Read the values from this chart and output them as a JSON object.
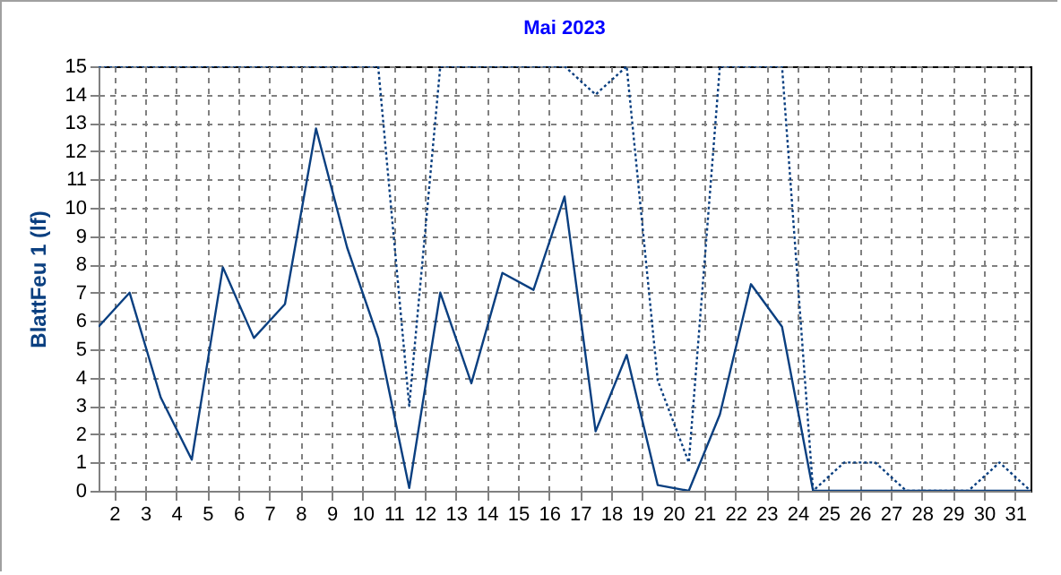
{
  "chart_data": {
    "type": "line",
    "title": "Mai 2023",
    "ylabel": "BlattFeu 1 (lf)",
    "x": [
      1.5,
      2.5,
      3.5,
      4.5,
      5.5,
      6.5,
      7.5,
      8.5,
      9.5,
      10.5,
      11.5,
      12.5,
      13.5,
      14.5,
      15.5,
      16.5,
      17.5,
      18.5,
      19.5,
      20.5,
      21.5,
      22.5,
      23.5,
      24.5,
      25.5,
      26.5,
      27.5,
      28.5,
      29.5,
      30.5,
      31.5
    ],
    "series": [
      {
        "color": "#0a3f80",
        "line_style": "solid",
        "values": [
          5.8,
          7.0,
          3.3,
          1.1,
          7.9,
          5.4,
          6.6,
          12.8,
          8.6,
          5.4,
          0.1,
          7.0,
          3.8,
          7.7,
          7.1,
          10.4,
          2.1,
          4.8,
          0.2,
          0.0,
          2.7,
          7.3,
          5.8,
          0,
          0,
          0,
          0,
          0,
          0,
          0,
          0
        ]
      },
      {
        "color": "#0a3f80",
        "line_style": "dotted",
        "values": [
          15,
          15,
          15,
          15,
          15,
          15,
          15,
          15,
          15,
          15,
          3.0,
          15,
          15,
          15,
          15,
          15,
          14.0,
          15,
          3.9,
          1.0,
          15,
          15,
          15,
          0,
          1.0,
          1.0,
          0,
          0,
          0,
          1.0,
          0
        ]
      }
    ],
    "xlim": [
      1.5,
      31.5
    ],
    "xticks": [
      2,
      3,
      4,
      5,
      6,
      7,
      8,
      9,
      10,
      11,
      12,
      13,
      14,
      15,
      16,
      17,
      18,
      19,
      20,
      21,
      22,
      23,
      24,
      25,
      26,
      27,
      28,
      29,
      30,
      31
    ],
    "ylim": [
      0,
      15
    ],
    "yticks": [
      0,
      1,
      2,
      3,
      4,
      5,
      6,
      7,
      8,
      9,
      10,
      11,
      12,
      13,
      14,
      15
    ],
    "grid": true,
    "marker": "none"
  }
}
